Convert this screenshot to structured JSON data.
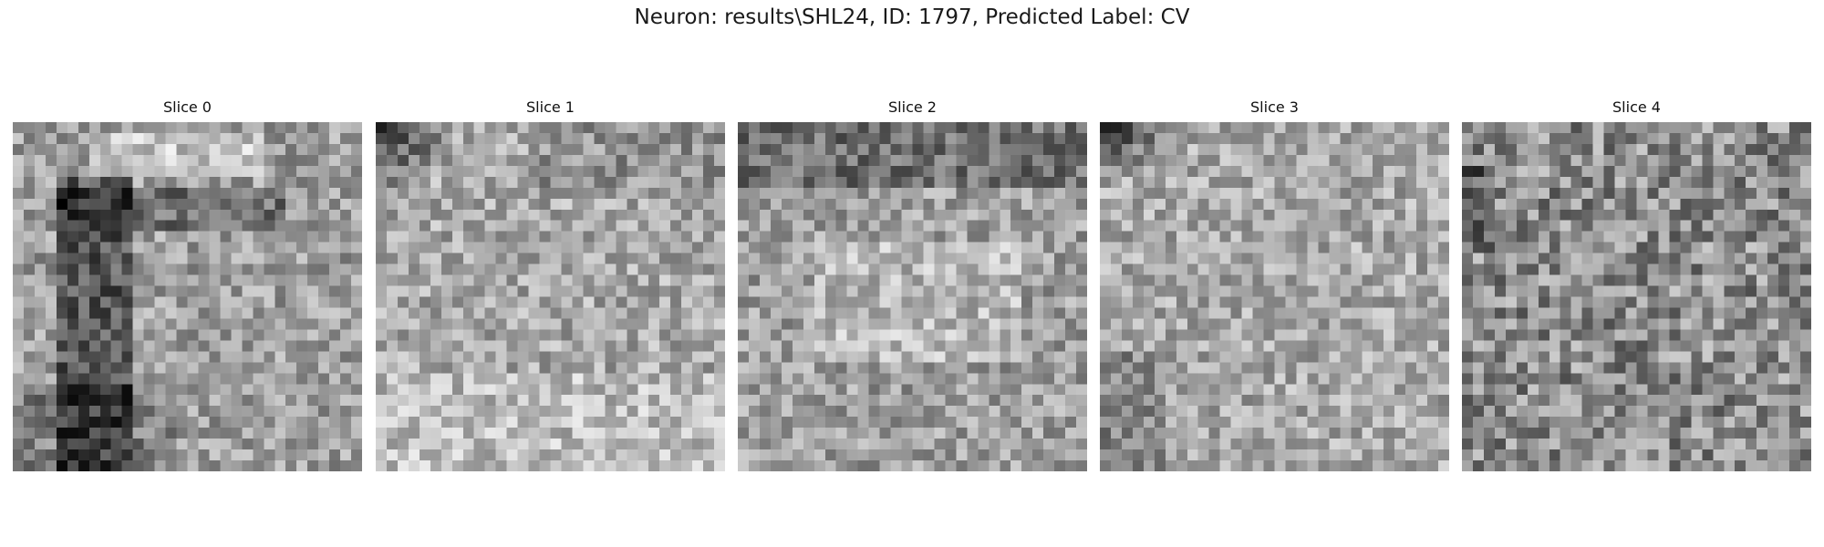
{
  "figure": {
    "title": "Neuron: results\\SHL24, ID: 1797, Predicted Label: CV"
  },
  "chart_data": {
    "type": "heatmap",
    "colormap": "gray",
    "grid_size": [
      32,
      32
    ],
    "value_range": [
      0,
      1
    ],
    "axes_visible": false,
    "panels": [
      {
        "title": "Slice 0",
        "pattern": "dark-frame-left-and-top-band",
        "seed": 11
      },
      {
        "title": "Slice 1",
        "pattern": "dark-top-left-corner-bright-bottom",
        "seed": 23
      },
      {
        "title": "Slice 2",
        "pattern": "dark-top-band-bright-center",
        "seed": 37
      },
      {
        "title": "Slice 3",
        "pattern": "dark-top-left-corner-bright-noise",
        "seed": 53
      },
      {
        "title": "Slice 4",
        "pattern": "mid-gray-noise",
        "seed": 71
      }
    ]
  }
}
